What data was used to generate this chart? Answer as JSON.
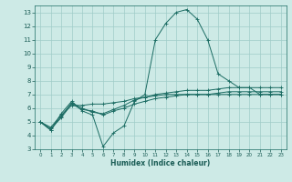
{
  "xlabel": "Humidex (Indice chaleur)",
  "xlim": [
    -0.5,
    23.5
  ],
  "ylim": [
    3,
    13.5
  ],
  "yticks": [
    3,
    4,
    5,
    6,
    7,
    8,
    9,
    10,
    11,
    12,
    13
  ],
  "xticks": [
    0,
    1,
    2,
    3,
    4,
    5,
    6,
    7,
    8,
    9,
    10,
    11,
    12,
    13,
    14,
    15,
    16,
    17,
    18,
    19,
    20,
    21,
    22,
    23
  ],
  "bg_color": "#cdeae6",
  "grid_color": "#a0ccc8",
  "line_color": "#1a6b62",
  "lines": [
    {
      "x": [
        0,
        1,
        2,
        3,
        4,
        5,
        6,
        7,
        8,
        9,
        10,
        11,
        12,
        13,
        14,
        15,
        16,
        17,
        18,
        19,
        20,
        21,
        22,
        23
      ],
      "y": [
        5.0,
        4.4,
        5.6,
        6.5,
        5.8,
        5.5,
        3.2,
        4.2,
        4.7,
        6.5,
        7.0,
        11.0,
        12.2,
        13.0,
        13.2,
        12.5,
        11.0,
        8.5,
        8.0,
        7.5,
        7.5,
        7.0,
        7.0,
        7.0
      ]
    },
    {
      "x": [
        0,
        1,
        2,
        3,
        4,
        5,
        6,
        7,
        8,
        9,
        10,
        11,
        12,
        13,
        14,
        15,
        16,
        17,
        18,
        19,
        20,
        21,
        22,
        23
      ],
      "y": [
        5.0,
        4.6,
        5.5,
        6.2,
        6.2,
        6.3,
        6.3,
        6.4,
        6.5,
        6.7,
        6.8,
        6.9,
        7.0,
        7.0,
        7.0,
        7.0,
        7.0,
        7.0,
        7.0,
        7.0,
        7.0,
        7.0,
        7.0,
        7.0
      ]
    },
    {
      "x": [
        0,
        1,
        2,
        3,
        4,
        5,
        6,
        7,
        8,
        9,
        10,
        11,
        12,
        13,
        14,
        15,
        16,
        17,
        18,
        19,
        20,
        21,
        22,
        23
      ],
      "y": [
        5.0,
        4.5,
        5.3,
        6.3,
        5.9,
        5.8,
        5.5,
        5.8,
        6.0,
        6.3,
        6.5,
        6.7,
        6.8,
        6.9,
        7.0,
        7.0,
        7.0,
        7.1,
        7.2,
        7.2,
        7.2,
        7.2,
        7.2,
        7.2
      ]
    },
    {
      "x": [
        0,
        1,
        2,
        3,
        4,
        5,
        6,
        7,
        8,
        9,
        10,
        11,
        12,
        13,
        14,
        15,
        16,
        17,
        18,
        19,
        20,
        21,
        22,
        23
      ],
      "y": [
        5.0,
        4.4,
        5.4,
        6.4,
        6.0,
        5.7,
        5.6,
        5.9,
        6.2,
        6.6,
        6.8,
        7.0,
        7.1,
        7.2,
        7.3,
        7.3,
        7.3,
        7.4,
        7.5,
        7.5,
        7.5,
        7.5,
        7.5,
        7.5
      ]
    }
  ]
}
